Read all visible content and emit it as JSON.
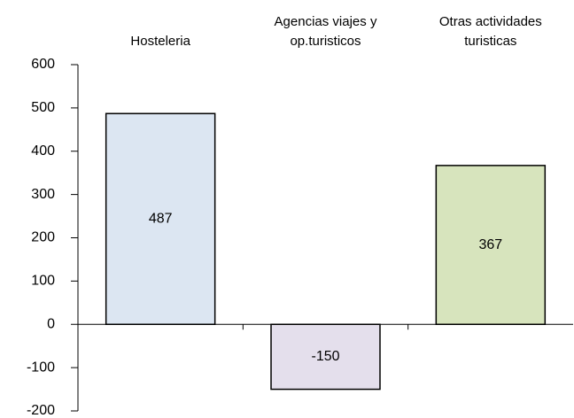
{
  "chart_data": {
    "type": "bar",
    "categories": [
      [
        "Hosteleria"
      ],
      [
        "Agencias viajes y",
        "op.turisticos"
      ],
      [
        "Otras actividades",
        "turisticas"
      ]
    ],
    "values": [
      487,
      -150,
      367
    ],
    "colors": [
      "#dce6f2",
      "#e4dfec",
      "#d7e4bd"
    ],
    "ylim": [
      -200,
      600
    ],
    "yticks": [
      -200,
      -100,
      0,
      100,
      200,
      300,
      400,
      500,
      600
    ],
    "grid": false
  }
}
